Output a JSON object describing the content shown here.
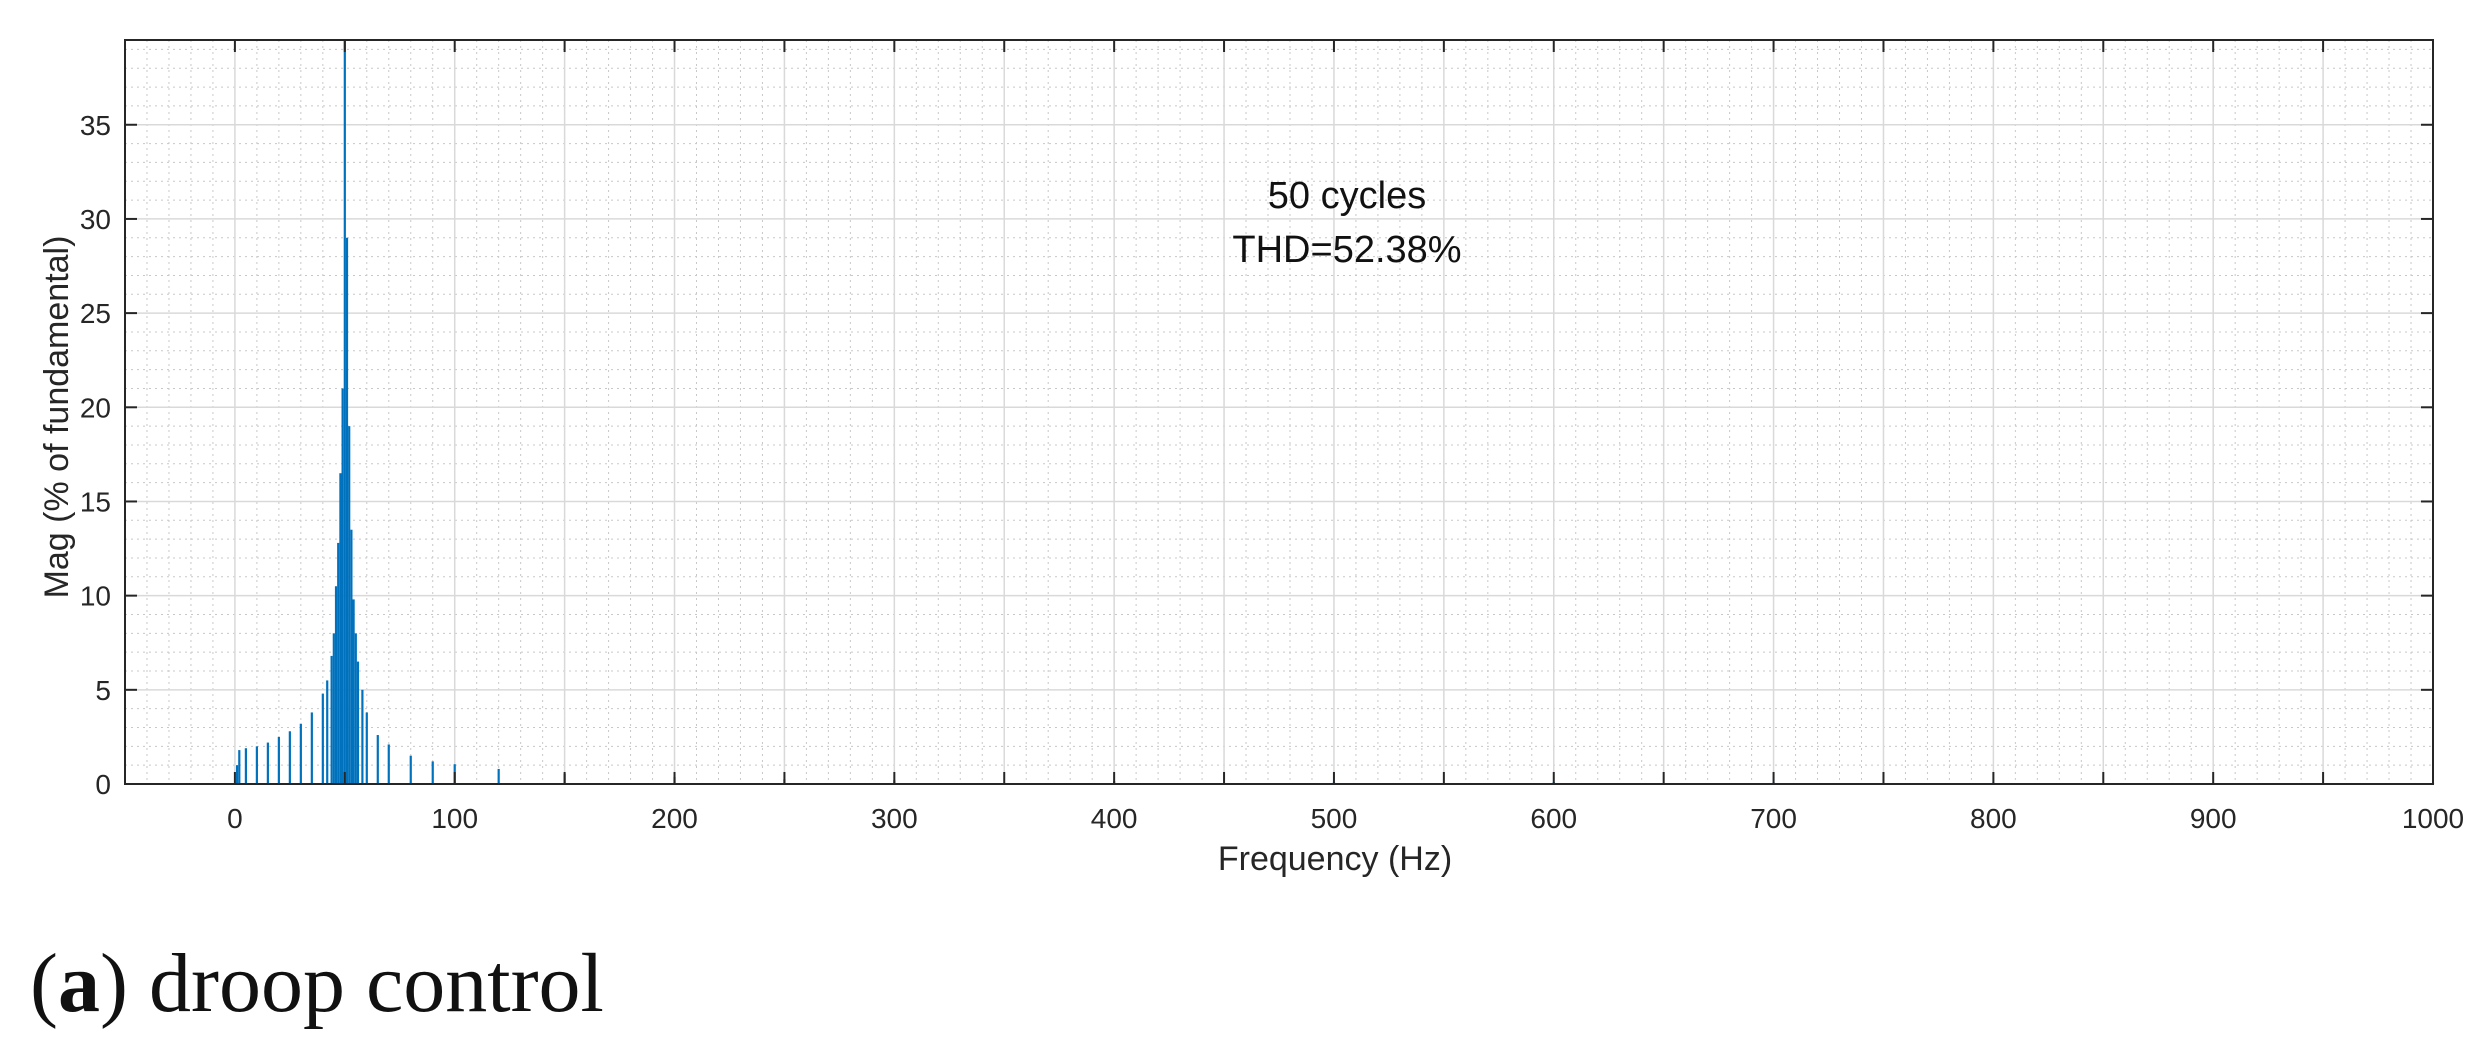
{
  "caption": {
    "open": "(",
    "letter": "a",
    "close": ")",
    "text": " droop control"
  },
  "chart_data": {
    "type": "bar",
    "title": "",
    "xlabel": "Frequency (Hz)",
    "ylabel": "Mag (% of fundamental)",
    "xlim": [
      -50,
      1000
    ],
    "ylim": [
      0,
      39.5
    ],
    "xticks": [
      0,
      100,
      200,
      300,
      400,
      500,
      600,
      700,
      800,
      900,
      1000
    ],
    "yticks": [
      0,
      5,
      10,
      15,
      20,
      25,
      30,
      35
    ],
    "grid": true,
    "minor_grid": true,
    "bar_color": "#0072BD",
    "annotation": {
      "lines": [
        "50 cycles",
        "THD=52.38%"
      ]
    },
    "x": [
      1,
      2,
      5,
      10,
      15,
      20,
      25,
      30,
      35,
      40,
      42,
      44,
      45,
      46,
      47,
      48,
      49,
      50,
      51,
      52,
      53,
      54,
      55,
      56,
      58,
      60,
      65,
      70,
      80,
      90,
      100,
      120,
      150,
      200,
      250,
      300,
      400,
      500,
      600,
      700,
      800,
      900,
      1000
    ],
    "values": [
      1.0,
      1.8,
      1.9,
      2.0,
      2.2,
      2.5,
      2.8,
      3.2,
      3.8,
      4.8,
      5.5,
      6.8,
      8.0,
      10.5,
      12.8,
      16.5,
      21.0,
      39.5,
      29.0,
      19.0,
      13.5,
      9.8,
      8.0,
      6.5,
      5.0,
      3.8,
      2.6,
      2.1,
      1.5,
      1.2,
      1.05,
      0.8,
      0.55,
      0.38,
      0.25,
      0.2,
      0.15,
      0.12,
      0.1,
      0.08,
      0.07,
      0.06,
      0.05
    ]
  }
}
